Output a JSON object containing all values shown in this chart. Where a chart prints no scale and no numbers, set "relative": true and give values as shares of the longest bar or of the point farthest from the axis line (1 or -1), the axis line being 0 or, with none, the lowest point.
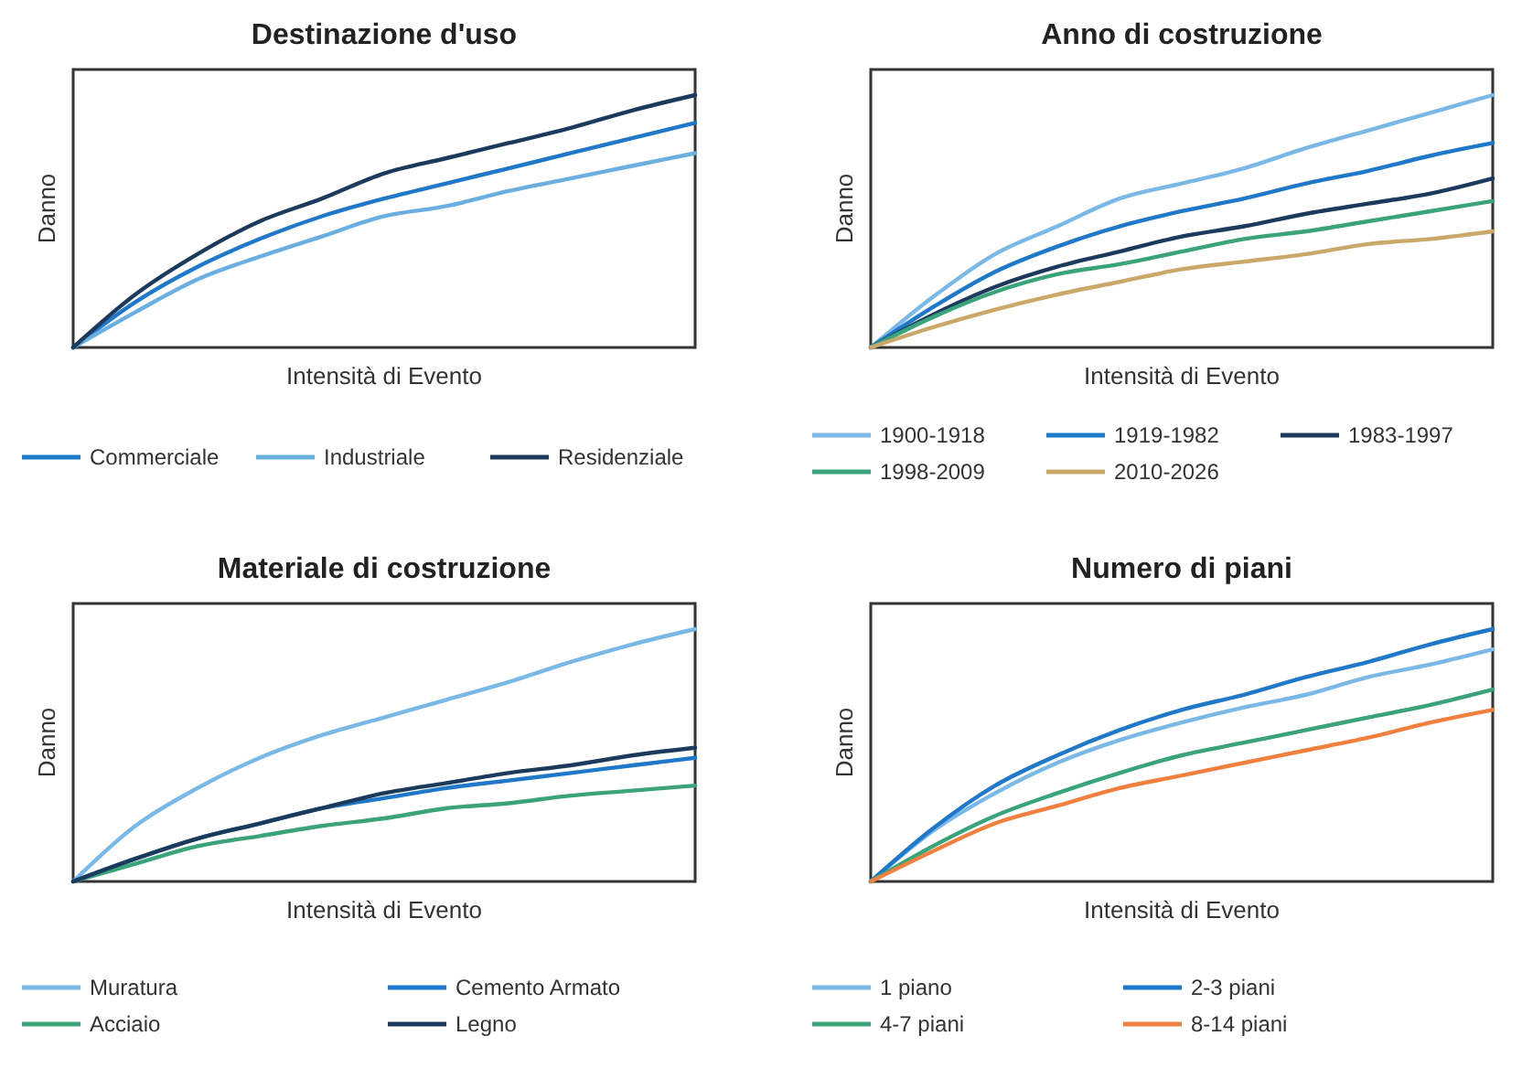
{
  "chart_data": [
    {
      "type": "line",
      "title": "Destinazione d'uso",
      "xlabel": "Intensità di Evento",
      "ylabel": "Danno",
      "relative": true,
      "legend": "bottom",
      "line_style": "solid",
      "marker": "none",
      "categories": [
        null,
        null,
        null,
        null,
        null,
        null,
        null,
        null,
        null,
        null,
        null
      ],
      "series": [
        {
          "name": "Commerciale",
          "color": "#1f78c8",
          "values": [
            0,
            0.18,
            0.32,
            0.43,
            0.52,
            0.59,
            0.65,
            0.71,
            0.77,
            0.83,
            0.89
          ]
        },
        {
          "name": "Industriale",
          "color": "#6baee0",
          "values": [
            0,
            0.14,
            0.27,
            0.36,
            0.44,
            0.52,
            0.56,
            0.62,
            0.67,
            0.72,
            0.77
          ]
        },
        {
          "name": "Residenziale",
          "color": "#1b3a5c",
          "values": [
            0,
            0.21,
            0.37,
            0.5,
            0.59,
            0.69,
            0.75,
            0.81,
            0.87,
            0.94,
            1
          ]
        }
      ]
    },
    {
      "type": "line",
      "title": "Anno di costruzione",
      "xlabel": "Intensità di Evento",
      "ylabel": "Danno",
      "relative": true,
      "legend": "bottom",
      "line_style": "solid",
      "marker": "none",
      "categories": [
        null,
        null,
        null,
        null,
        null,
        null,
        null,
        null,
        null,
        null,
        null
      ],
      "series": [
        {
          "name": "1900-1918",
          "color": "#7ab8e6",
          "values": [
            0,
            0.2,
            0.37,
            0.48,
            0.59,
            0.65,
            0.71,
            0.79,
            0.86,
            0.93,
            1
          ]
        },
        {
          "name": "1919-1982",
          "color": "#1f78c8",
          "values": [
            0,
            0.16,
            0.3,
            0.4,
            0.48,
            0.54,
            0.59,
            0.65,
            0.7,
            0.76,
            0.81
          ]
        },
        {
          "name": "1983-1997",
          "color": "#1b3a5c",
          "values": [
            0,
            0.13,
            0.24,
            0.32,
            0.38,
            0.44,
            0.48,
            0.53,
            0.57,
            0.61,
            0.67
          ]
        },
        {
          "name": "1998-2009",
          "color": "#3aa37a",
          "values": [
            0,
            0.12,
            0.22,
            0.29,
            0.33,
            0.38,
            0.43,
            0.46,
            0.5,
            0.54,
            0.58
          ]
        },
        {
          "name": "2010-2026",
          "color": "#c9a86a",
          "values": [
            0,
            0.08,
            0.15,
            0.21,
            0.26,
            0.31,
            0.34,
            0.37,
            0.41,
            0.43,
            0.46
          ]
        }
      ]
    },
    {
      "type": "line",
      "title": "Materiale di costruzione",
      "xlabel": "Intensità di Evento",
      "ylabel": "Danno",
      "relative": true,
      "legend": "bottom",
      "line_style": "solid",
      "marker": "none",
      "categories": [
        null,
        null,
        null,
        null,
        null,
        null,
        null,
        null,
        null,
        null,
        null
      ],
      "series": [
        {
          "name": "Muratura",
          "color": "#7ab8e6",
          "values": [
            0,
            0.22,
            0.37,
            0.49,
            0.58,
            0.65,
            0.72,
            0.79,
            0.87,
            0.94,
            1
          ]
        },
        {
          "name": "Cemento Armato",
          "color": "#1f78c8",
          "values": [
            0,
            0.09,
            0.17,
            0.23,
            0.29,
            0.33,
            0.37,
            0.4,
            0.43,
            0.46,
            0.49
          ]
        },
        {
          "name": "Acciaio",
          "color": "#3aa37a",
          "values": [
            0,
            0.07,
            0.14,
            0.18,
            0.22,
            0.25,
            0.29,
            0.31,
            0.34,
            0.36,
            0.38
          ]
        },
        {
          "name": "Legno",
          "color": "#1b3a5c",
          "values": [
            0,
            0.09,
            0.17,
            0.23,
            0.29,
            0.35,
            0.39,
            0.43,
            0.46,
            0.5,
            0.53
          ]
        }
      ]
    },
    {
      "type": "line",
      "title": "Numero di piani",
      "xlabel": "Intensità di Evento",
      "ylabel": "Danno",
      "relative": true,
      "legend": "bottom",
      "line_style": "solid",
      "marker": "none",
      "categories": [
        null,
        null,
        null,
        null,
        null,
        null,
        null,
        null,
        null,
        null,
        null
      ],
      "series": [
        {
          "name": "1 piano",
          "color": "#7ab8e6",
          "values": [
            0,
            0.2,
            0.35,
            0.47,
            0.56,
            0.63,
            0.69,
            0.74,
            0.81,
            0.86,
            0.92
          ]
        },
        {
          "name": "2-3 piani",
          "color": "#1f78c8",
          "values": [
            0,
            0.21,
            0.38,
            0.5,
            0.6,
            0.68,
            0.74,
            0.81,
            0.87,
            0.94,
            1
          ]
        },
        {
          "name": "4-7 piani",
          "color": "#3aa37a",
          "values": [
            0,
            0.14,
            0.26,
            0.35,
            0.43,
            0.5,
            0.55,
            0.6,
            0.65,
            0.7,
            0.76
          ]
        },
        {
          "name": "8-14 piani",
          "color": "#f08040",
          "values": [
            0,
            0.12,
            0.23,
            0.3,
            0.37,
            0.42,
            0.47,
            0.52,
            0.57,
            0.63,
            0.68
          ]
        }
      ]
    }
  ]
}
